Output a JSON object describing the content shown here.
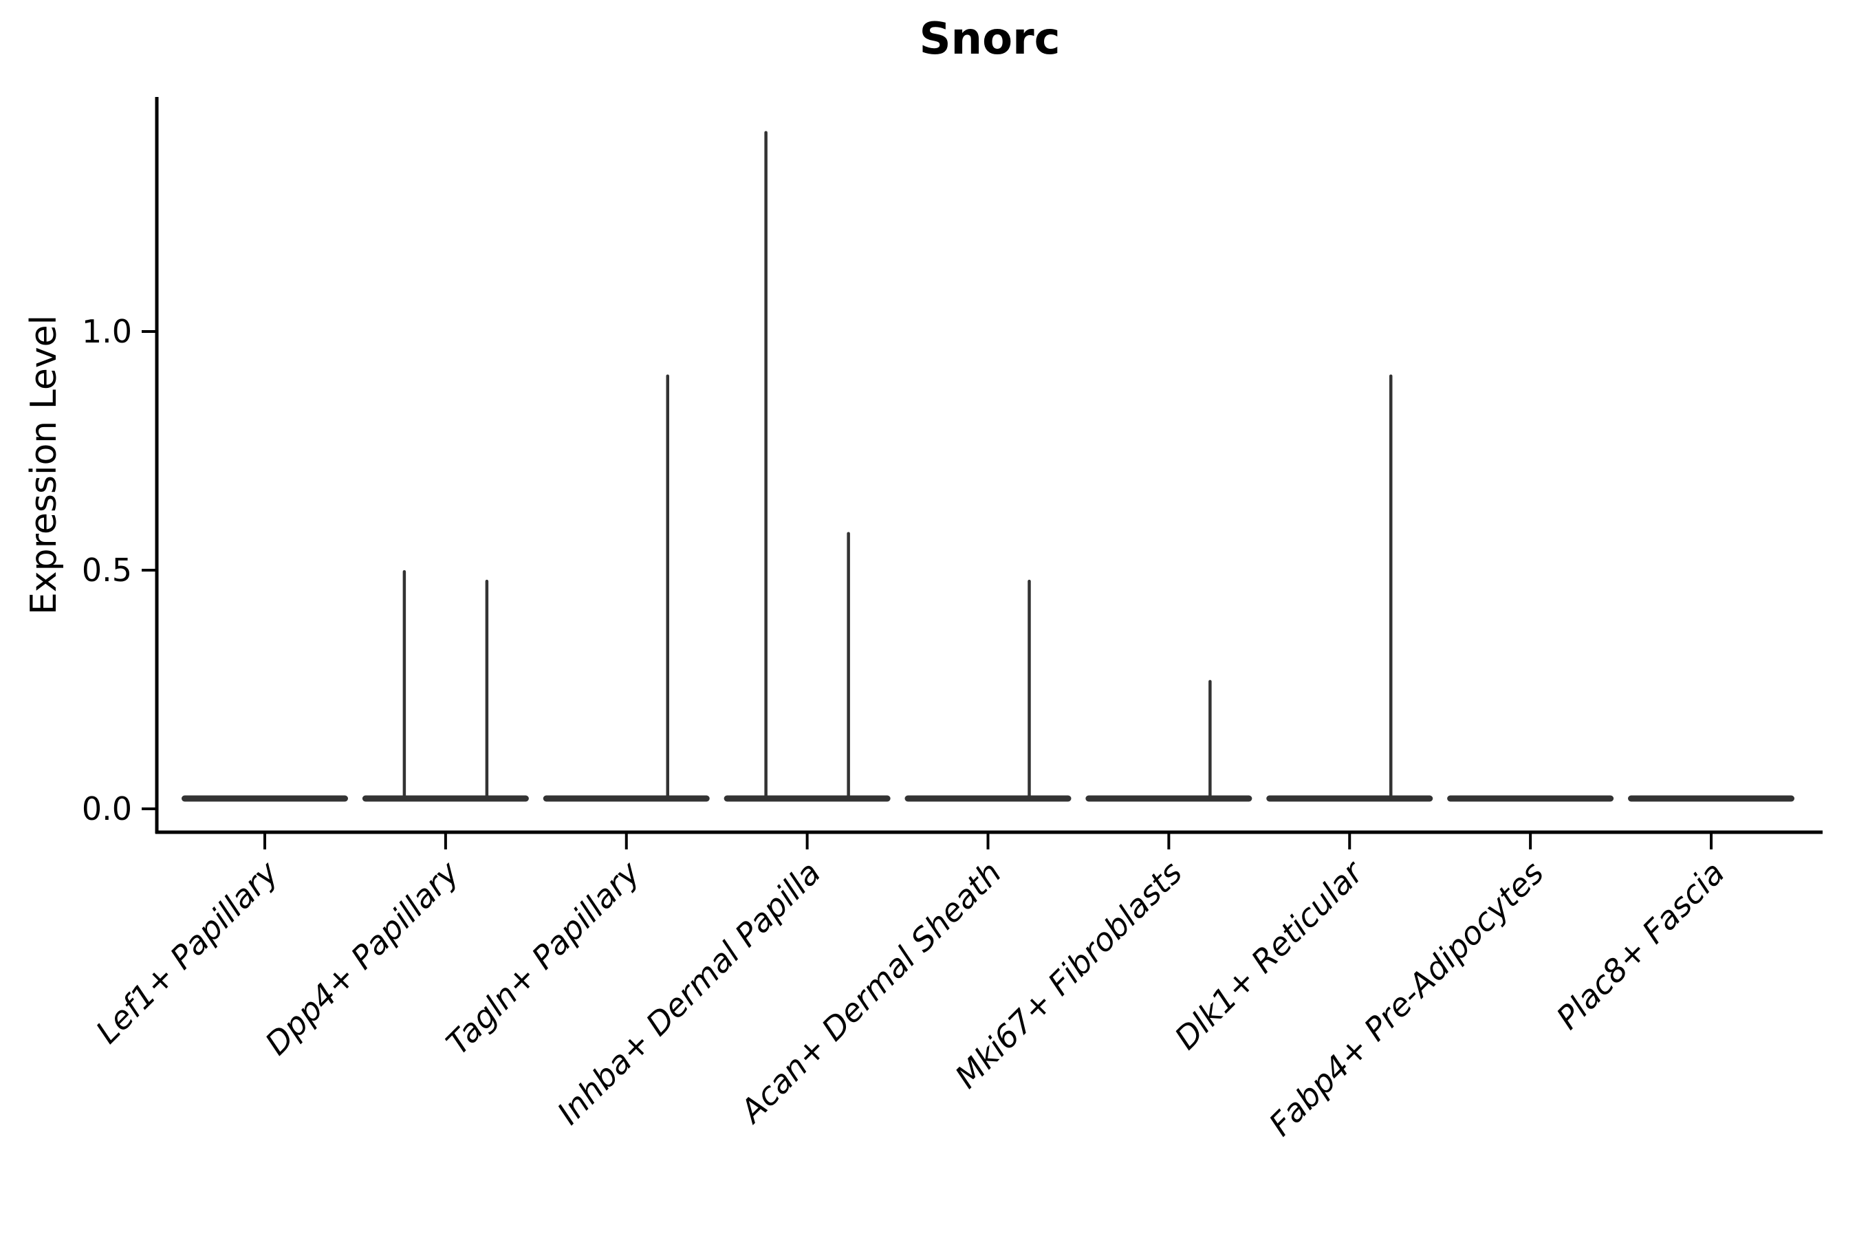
{
  "figure": {
    "background": "#ffffff"
  },
  "chart_data": {
    "type": "violin",
    "title": "Snorc",
    "ylabel": "Expression Level",
    "xlabel": "",
    "grid": false,
    "legend": null,
    "axis_color": "#000000",
    "violin_color": "#333333",
    "ylim": [
      -0.05,
      1.49
    ],
    "ytick_labels": [
      "0.0",
      "0.5",
      "1.0"
    ],
    "ytick_values": [
      0.0,
      0.5,
      1.0
    ],
    "categories": [
      "Lef1+ Papillary",
      "Dpp4+ Papillary",
      "Tagln+ Papillary",
      "Inhba+ Dermal Papilla",
      "Acan+ Dermal Sheath",
      "Mki67+ Fibroblasts",
      "Dlk1+ Reticular",
      "Fabp4+ Pre-Adipocytes",
      "Plac8+ Fascia"
    ],
    "baseline": {
      "value": 0.02,
      "note": "flat violin body of near-zero expression present in every group"
    },
    "violins": [
      {
        "category": "Lef1+ Papillary",
        "spikes": []
      },
      {
        "category": "Dpp4+ Papillary",
        "spikes": [
          {
            "pos": "left",
            "value": 0.5
          },
          {
            "pos": "right",
            "value": 0.48
          }
        ]
      },
      {
        "category": "Tagln+ Papillary",
        "spikes": [
          {
            "pos": "right",
            "value": 0.91
          }
        ]
      },
      {
        "category": "Inhba+ Dermal Papilla",
        "spikes": [
          {
            "pos": "left",
            "value": 1.42
          },
          {
            "pos": "right",
            "value": 0.58
          }
        ]
      },
      {
        "category": "Acan+ Dermal Sheath",
        "spikes": [
          {
            "pos": "right",
            "value": 0.48
          }
        ]
      },
      {
        "category": "Mki67+ Fibroblasts",
        "spikes": [
          {
            "pos": "right",
            "value": 0.27
          }
        ]
      },
      {
        "category": "Dlk1+ Reticular",
        "spikes": [
          {
            "pos": "right",
            "value": 0.91
          }
        ]
      },
      {
        "category": "Fabp4+ Pre-Adipocytes",
        "spikes": []
      },
      {
        "category": "Plac8+ Fascia",
        "spikes": []
      }
    ]
  }
}
